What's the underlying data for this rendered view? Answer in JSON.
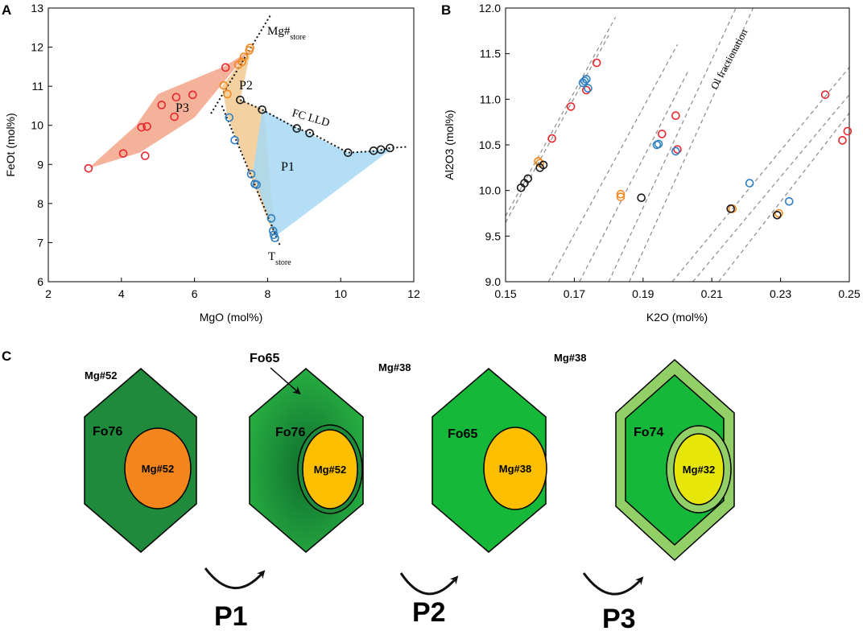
{
  "panels": {
    "a": {
      "label": "A"
    },
    "b": {
      "label": "B"
    },
    "c": {
      "label": "C"
    }
  },
  "colors": {
    "red": "#e8262b",
    "blue": "#2f7fc4",
    "orange": "#f18a23",
    "black": "#1a1a1a",
    "p1_fill": "#a6d8f3",
    "p2_fill": "#f2c98f",
    "p3_fill": "#f3a48a",
    "crystal_dark": "#1f8a3b",
    "crystal_mid": "#22a83b",
    "crystal_light": "#16b83a",
    "rim_light": "#92cf66",
    "core_orange": "#f2861d",
    "core_amber": "#fbbf00",
    "core_yellow": "#e6e60a"
  },
  "chart_data": [
    {
      "id": "A",
      "type": "scatter",
      "xlabel": "MgO (mol%)",
      "ylabel": "FeOt (mol%)",
      "xlim": [
        2,
        12
      ],
      "ylim": [
        6,
        13
      ],
      "xticks": [
        "2",
        "4",
        "6",
        "8",
        "10",
        "12"
      ],
      "yticks": [
        "6",
        "7",
        "8",
        "9",
        "10",
        "11",
        "12",
        "13"
      ],
      "series": [
        {
          "name": "red",
          "color": "red",
          "points": [
            [
              3.1,
              8.9
            ],
            [
              4.05,
              9.28
            ],
            [
              4.65,
              9.22
            ],
            [
              4.55,
              9.95
            ],
            [
              4.7,
              9.97
            ],
            [
              5.1,
              10.52
            ],
            [
              5.45,
              10.22
            ],
            [
              5.5,
              10.72
            ],
            [
              5.95,
              10.78
            ],
            [
              6.85,
              11.48
            ]
          ]
        },
        {
          "name": "orange",
          "color": "orange",
          "points": [
            [
              6.8,
              11.02
            ],
            [
              6.9,
              10.8
            ],
            [
              7.2,
              11.55
            ],
            [
              7.3,
              11.62
            ],
            [
              7.35,
              11.75
            ],
            [
              7.5,
              11.92
            ],
            [
              7.52,
              11.98
            ]
          ]
        },
        {
          "name": "blue",
          "color": "blue",
          "points": [
            [
              6.95,
              10.2
            ],
            [
              7.1,
              9.62
            ],
            [
              7.55,
              8.75
            ],
            [
              7.65,
              8.5
            ],
            [
              7.7,
              8.48
            ],
            [
              8.1,
              7.62
            ],
            [
              8.15,
              7.3
            ],
            [
              8.17,
              7.2
            ],
            [
              8.2,
              7.12
            ]
          ]
        },
        {
          "name": "black",
          "color": "black",
          "points": [
            [
              7.25,
              10.65
            ],
            [
              7.85,
              10.4
            ],
            [
              8.8,
              9.92
            ],
            [
              9.15,
              9.8
            ],
            [
              10.2,
              9.3
            ],
            [
              10.9,
              9.35
            ],
            [
              11.1,
              9.38
            ],
            [
              11.35,
              9.42
            ]
          ]
        }
      ],
      "regions": [
        {
          "name": "P3",
          "fill": "p3_fill",
          "polygon": [
            [
              3.1,
              8.9
            ],
            [
              4.5,
              9.3
            ],
            [
              6.0,
              10.2
            ],
            [
              7.5,
              11.9
            ],
            [
              6.8,
              11.5
            ],
            [
              5.0,
              10.8
            ],
            [
              4.4,
              10.0
            ]
          ]
        },
        {
          "name": "P2",
          "fill": "p2_fill",
          "polygon": [
            [
              7.55,
              11.95
            ],
            [
              6.75,
              11.0
            ],
            [
              6.9,
              10.25
            ],
            [
              7.5,
              8.8
            ],
            [
              8.2,
              7.1
            ],
            [
              7.9,
              10.4
            ],
            [
              7.25,
              10.65
            ]
          ]
        },
        {
          "name": "P1",
          "fill": "p1_fill",
          "polygon": [
            [
              7.85,
              10.4
            ],
            [
              8.8,
              9.95
            ],
            [
              10.2,
              9.3
            ],
            [
              11.4,
              9.4
            ],
            [
              8.2,
              7.15
            ],
            [
              7.6,
              8.8
            ]
          ]
        }
      ],
      "lines": [
        {
          "name": "mg_store_line",
          "points": [
            [
              6.45,
              10.3
            ],
            [
              8.1,
              12.85
            ]
          ]
        },
        {
          "name": "t_store_line",
          "points": [
            [
              6.75,
              10.5
            ],
            [
              8.35,
              6.9
            ]
          ]
        },
        {
          "name": "fc_lld_line",
          "points": [
            [
              7.25,
              10.65
            ],
            [
              7.85,
              10.4
            ],
            [
              8.8,
              9.92
            ],
            [
              9.2,
              9.8
            ],
            [
              10.2,
              9.3
            ],
            [
              10.9,
              9.34
            ],
            [
              11.35,
              9.42
            ],
            [
              11.8,
              9.45
            ]
          ]
        }
      ],
      "annotations": {
        "mg_store": "Mg#",
        "mg_store_sub": "store",
        "t_store": "T",
        "t_store_sub": "store",
        "fc_lld": "FC LLD",
        "p1": "P1",
        "p2": "P2",
        "p3": "P3"
      }
    },
    {
      "id": "B",
      "type": "scatter",
      "xlabel": "K2O (mol%)",
      "ylabel": "Al2O3 (mol%)",
      "xlim": [
        0.15,
        0.25
      ],
      "ylim": [
        9.0,
        12.0
      ],
      "xticks": [
        "0.15",
        "0.17",
        "0.19",
        "0.21",
        "0.23",
        "0.25"
      ],
      "yticks": [
        "9.0",
        "9.5",
        "10.0",
        "10.5",
        "11.0",
        "11.5",
        "12.0"
      ],
      "series": [
        {
          "name": "red",
          "color": "red",
          "points": [
            [
              0.1765,
              11.4
            ],
            [
              0.1735,
              11.1
            ],
            [
              0.169,
              10.92
            ],
            [
              0.1635,
              10.57
            ],
            [
              0.1995,
              10.82
            ],
            [
              0.1955,
              10.62
            ],
            [
              0.2,
              10.45
            ],
            [
              0.243,
              11.05
            ],
            [
              0.2495,
              10.65
            ],
            [
              0.248,
              10.55
            ]
          ]
        },
        {
          "name": "blue",
          "color": "blue",
          "points": [
            [
              0.173,
              11.2
            ],
            [
              0.1725,
              11.18
            ],
            [
              0.1735,
              11.22
            ],
            [
              0.174,
              11.12
            ],
            [
              0.194,
              10.5
            ],
            [
              0.1945,
              10.51
            ],
            [
              0.1995,
              10.43
            ],
            [
              0.221,
              10.08
            ],
            [
              0.2325,
              9.88
            ]
          ]
        },
        {
          "name": "orange",
          "color": "orange",
          "points": [
            [
              0.1595,
              10.32
            ],
            [
              0.16,
              10.3
            ],
            [
              0.1835,
              9.96
            ],
            [
              0.1835,
              9.93
            ],
            [
              0.216,
              9.8
            ],
            [
              0.2295,
              9.75
            ],
            [
              0.229,
              9.73
            ]
          ]
        },
        {
          "name": "black",
          "color": "black",
          "points": [
            [
              0.1545,
              10.03
            ],
            [
              0.1555,
              10.08
            ],
            [
              0.1565,
              10.13
            ],
            [
              0.161,
              10.28
            ],
            [
              0.16,
              10.25
            ],
            [
              0.1895,
              9.92
            ],
            [
              0.2155,
              9.8
            ],
            [
              0.229,
              9.73
            ]
          ]
        }
      ],
      "dashed_lines": [
        [
          [
            0.15,
            9.65
          ],
          [
            0.18,
            11.7
          ]
        ],
        [
          [
            0.15,
            9.72
          ],
          [
            0.182,
            11.9
          ]
        ],
        [
          [
            0.1625,
            9.0
          ],
          [
            0.2,
            11.6
          ]
        ],
        [
          [
            0.1715,
            9.0
          ],
          [
            0.203,
            11.3
          ]
        ],
        [
          [
            0.18,
            9.0
          ],
          [
            0.217,
            12.0
          ]
        ],
        [
          [
            0.186,
            9.0
          ],
          [
            0.222,
            12.0
          ]
        ],
        [
          [
            0.1985,
            9.0
          ],
          [
            0.25,
            11.35
          ]
        ],
        [
          [
            0.2045,
            9.0
          ],
          [
            0.25,
            11.05
          ]
        ],
        [
          [
            0.212,
            9.0
          ],
          [
            0.25,
            10.85
          ]
        ]
      ],
      "annotations": {
        "ol_fractionation": "Ol fractionation"
      }
    }
  ],
  "panel_c": {
    "crystals": [
      {
        "mg_top": "Mg#52",
        "fo_label": "Fo76",
        "core": "Mg#52"
      },
      {
        "mg_top": "Mg#38",
        "fo_label": "Fo76",
        "core": "Mg#52",
        "fo_rim": "Fo65"
      },
      {
        "mg_top": "Mg#38",
        "fo_label": "Fo65",
        "core": "Mg#38"
      },
      {
        "fo_label": "Fo74",
        "core": "Mg#32"
      }
    ],
    "stages": [
      "P1",
      "P2",
      "P3"
    ]
  }
}
